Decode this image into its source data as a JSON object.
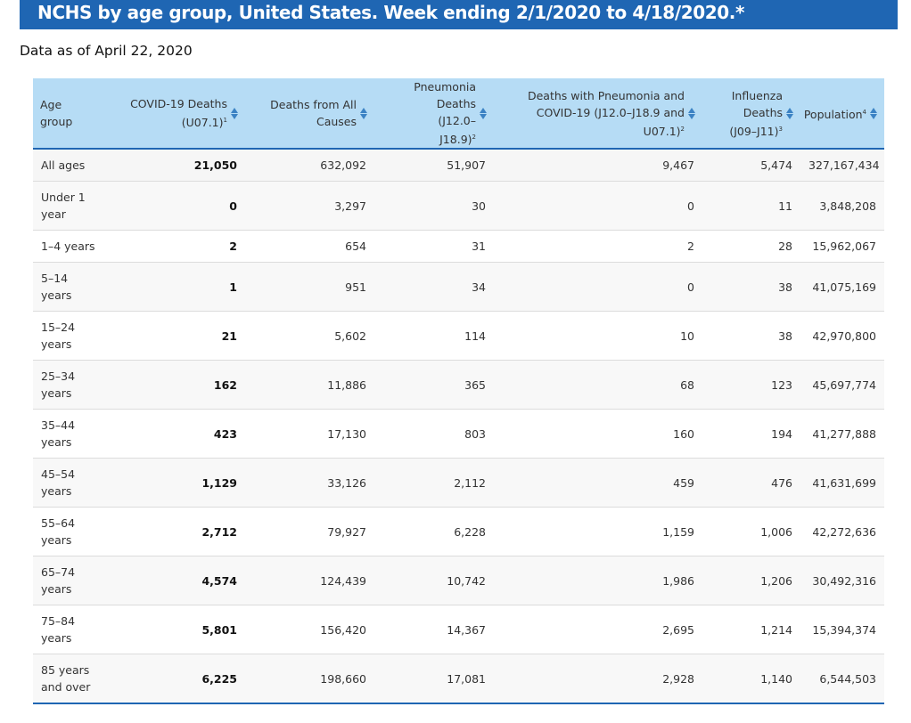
{
  "banner": {
    "title": "NCHS by age group, United States. Week ending 2/1/2020 to 4/18/2020.*"
  },
  "as_of": "Data as of April 22, 2020",
  "colors": {
    "banner": "#1f66b3",
    "header_bg": "#b6dcf5",
    "sort_icon": "#3b82c4"
  },
  "icons": {
    "sort": "sort-arrows-icon"
  },
  "headers": [
    {
      "label": "Age group",
      "sup": "",
      "sort": false
    },
    {
      "label": "COVID-19 Deaths (U07.1)",
      "sup": "1",
      "sort": true
    },
    {
      "label": "Deaths from All Causes",
      "sup": "",
      "sort": true
    },
    {
      "label": "Pneumonia Deaths (J12.0–J18.9)",
      "sup": "2",
      "sort": true
    },
    {
      "label": "Deaths with Pneumonia and COVID-19 (J12.0–J18.9 and U07.1)",
      "sup": "2",
      "sort": true
    },
    {
      "label": "Influenza Deaths (J09–J11)",
      "sup": "3",
      "sort": true
    },
    {
      "label": "Population",
      "sup": "4",
      "sort": true
    }
  ],
  "rows": [
    {
      "age": "All ages",
      "covid": "21,050",
      "all": "632,092",
      "pneu": "51,907",
      "pneu_covid": "9,467",
      "flu": "5,474",
      "pop": "327,167,434"
    },
    {
      "age": "Under 1 year",
      "covid": "0",
      "all": "3,297",
      "pneu": "30",
      "pneu_covid": "0",
      "flu": "11",
      "pop": "3,848,208"
    },
    {
      "age": "1–4 years",
      "covid": "2",
      "all": "654",
      "pneu": "31",
      "pneu_covid": "2",
      "flu": "28",
      "pop": "15,962,067"
    },
    {
      "age": "5–14 years",
      "covid": "1",
      "all": "951",
      "pneu": "34",
      "pneu_covid": "0",
      "flu": "38",
      "pop": "41,075,169"
    },
    {
      "age": "15–24 years",
      "covid": "21",
      "all": "5,602",
      "pneu": "114",
      "pneu_covid": "10",
      "flu": "38",
      "pop": "42,970,800"
    },
    {
      "age": "25–34 years",
      "covid": "162",
      "all": "11,886",
      "pneu": "365",
      "pneu_covid": "68",
      "flu": "123",
      "pop": "45,697,774"
    },
    {
      "age": "35–44 years",
      "covid": "423",
      "all": "17,130",
      "pneu": "803",
      "pneu_covid": "160",
      "flu": "194",
      "pop": "41,277,888"
    },
    {
      "age": "45–54 years",
      "covid": "1,129",
      "all": "33,126",
      "pneu": "2,112",
      "pneu_covid": "459",
      "flu": "476",
      "pop": "41,631,699"
    },
    {
      "age": "55–64 years",
      "covid": "2,712",
      "all": "79,927",
      "pneu": "6,228",
      "pneu_covid": "1,159",
      "flu": "1,006",
      "pop": "42,272,636"
    },
    {
      "age": "65–74 years",
      "covid": "4,574",
      "all": "124,439",
      "pneu": "10,742",
      "pneu_covid": "1,986",
      "flu": "1,206",
      "pop": "30,492,316"
    },
    {
      "age": "75–84 years",
      "covid": "5,801",
      "all": "156,420",
      "pneu": "14,367",
      "pneu_covid": "2,695",
      "flu": "1,214",
      "pop": "15,394,374"
    },
    {
      "age": "85 years and over",
      "covid": "6,225",
      "all": "198,660",
      "pneu": "17,081",
      "pneu_covid": "2,928",
      "flu": "1,140",
      "pop": "6,544,503"
    }
  ]
}
